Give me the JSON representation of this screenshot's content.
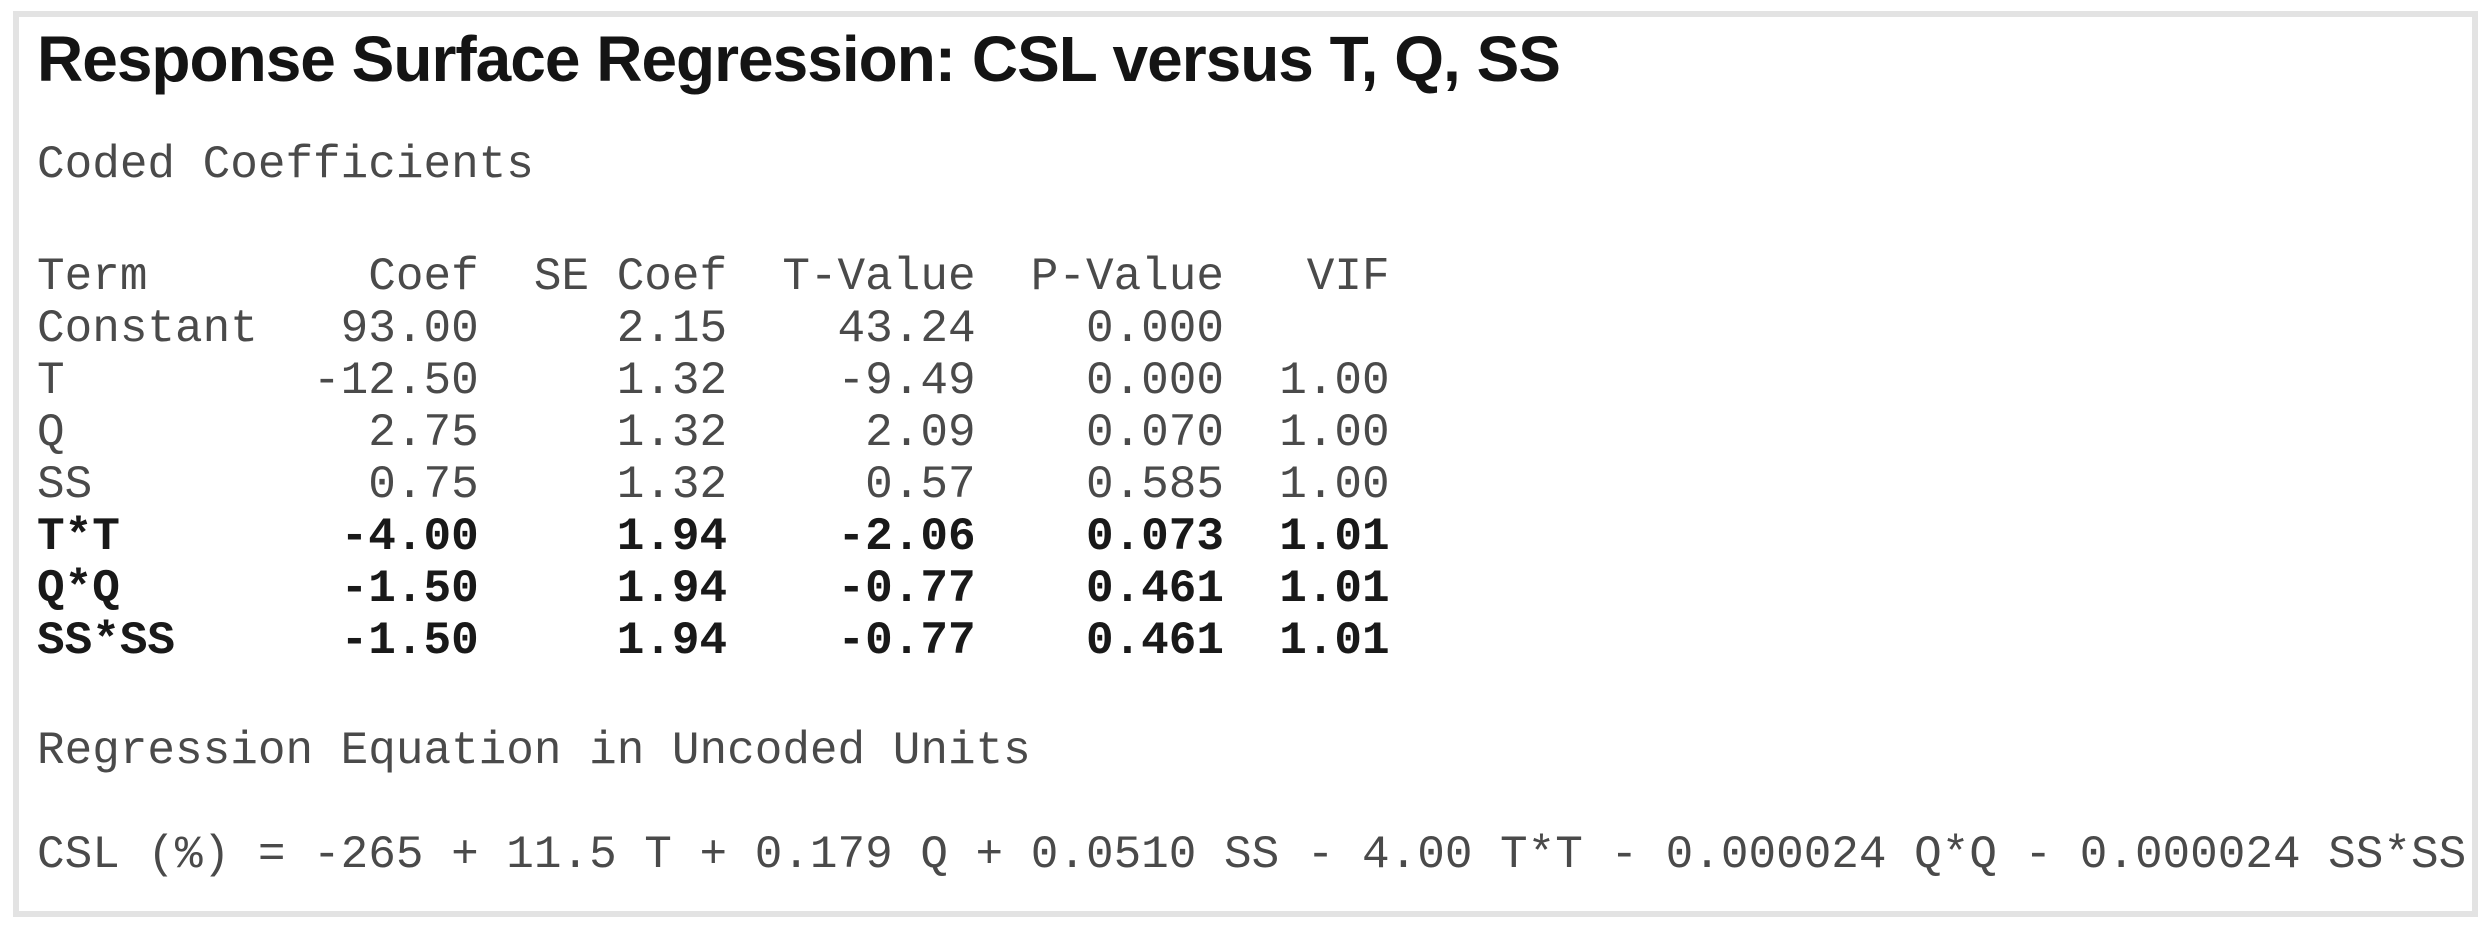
{
  "title": "Response Surface Regression: CSL versus T, Q, SS",
  "coded": {
    "heading": "Coded Coefficients",
    "columns": [
      "Term",
      "Coef",
      "SE Coef",
      "T-Value",
      "P-Value",
      "VIF"
    ],
    "rows": [
      {
        "term": "Constant",
        "coef": "93.00",
        "se_coef": "2.15",
        "t_value": "43.24",
        "p_value": "0.000",
        "vif": "",
        "bold": false
      },
      {
        "term": "T",
        "coef": "-12.50",
        "se_coef": "1.32",
        "t_value": "-9.49",
        "p_value": "0.000",
        "vif": "1.00",
        "bold": false
      },
      {
        "term": "Q",
        "coef": "2.75",
        "se_coef": "1.32",
        "t_value": "2.09",
        "p_value": "0.070",
        "vif": "1.00",
        "bold": false
      },
      {
        "term": "SS",
        "coef": "0.75",
        "se_coef": "1.32",
        "t_value": "0.57",
        "p_value": "0.585",
        "vif": "1.00",
        "bold": false
      },
      {
        "term": "T*T",
        "coef": "-4.00",
        "se_coef": "1.94",
        "t_value": "-2.06",
        "p_value": "0.073",
        "vif": "1.01",
        "bold": true
      },
      {
        "term": "Q*Q",
        "coef": "-1.50",
        "se_coef": "1.94",
        "t_value": "-0.77",
        "p_value": "0.461",
        "vif": "1.01",
        "bold": true
      },
      {
        "term": "SS*SS",
        "coef": "-1.50",
        "se_coef": "1.94",
        "t_value": "-0.77",
        "p_value": "0.461",
        "vif": "1.01",
        "bold": true
      }
    ],
    "lines": [
      {
        "text": "Term        Coef  SE Coef  T-Value  P-Value   VIF",
        "bold": false
      },
      {
        "text": "Constant   93.00     2.15    43.24    0.000",
        "bold": false
      },
      {
        "text": "T         -12.50     1.32    -9.49    0.000  1.00",
        "bold": false
      },
      {
        "text": "Q           2.75     1.32     2.09    0.070  1.00",
        "bold": false
      },
      {
        "text": "SS          0.75     1.32     0.57    0.585  1.00",
        "bold": false
      },
      {
        "text": "T*T        -4.00     1.94    -2.06    0.073  1.01",
        "bold": true
      },
      {
        "text": "Q*Q        -1.50     1.94    -0.77    0.461  1.01",
        "bold": true
      },
      {
        "text": "SS*SS      -1.50     1.94    -0.77    0.461  1.01",
        "bold": true
      }
    ]
  },
  "regression": {
    "heading": "Regression Equation in Uncoded Units",
    "equation": "CSL (%) = -265 + 11.5 T + 0.179 Q + 0.0510 SS - 4.00 T*T - 0.000024 Q*Q - 0.000024 SS*SS"
  },
  "colors": {
    "frame_border": "#e3e3e3",
    "title_text": "#141414",
    "body_text": "#4a4a4a",
    "bold_text": "#191919",
    "background": "#ffffff"
  }
}
